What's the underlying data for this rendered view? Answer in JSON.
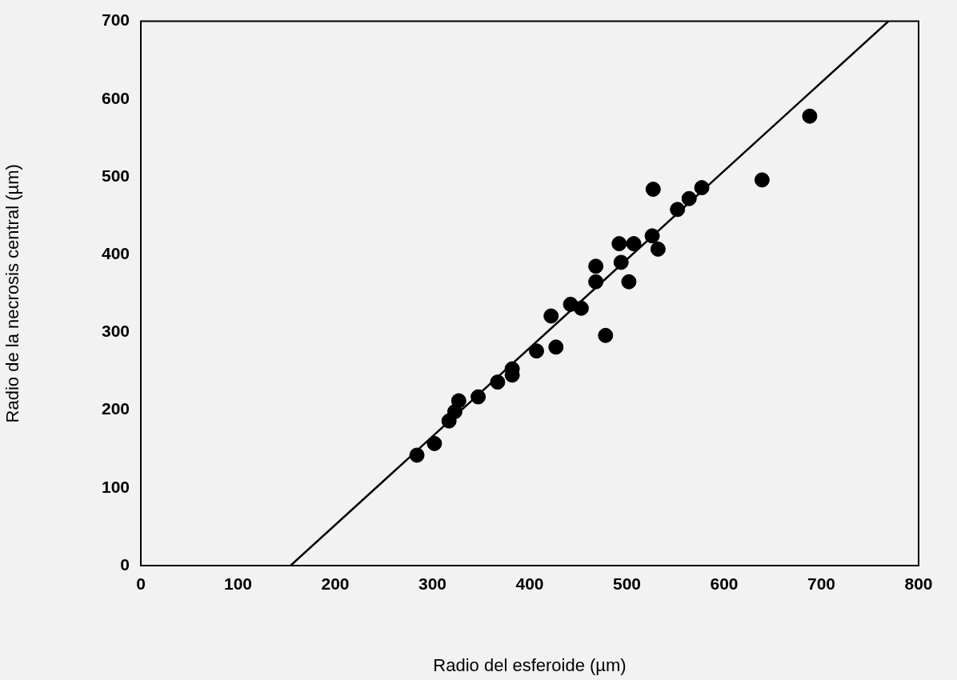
{
  "chart_data": {
    "type": "scatter",
    "xlabel": "Radio del esferoide (µm)",
    "ylabel": "Radio de la necrosis central (µm)",
    "xlim": [
      0,
      800
    ],
    "ylim": [
      0,
      700
    ],
    "xticks": [
      0,
      100,
      200,
      300,
      400,
      500,
      600,
      700,
      800
    ],
    "yticks": [
      0,
      100,
      200,
      300,
      400,
      500,
      600,
      700
    ],
    "grid": false,
    "legend": false,
    "series": [
      {
        "color": "#000000",
        "marker": "circle",
        "x": [
          284,
          302,
          317,
          323,
          327,
          347,
          367,
          382,
          382,
          407,
          427,
          422,
          442,
          453,
          478,
          468,
          468,
          502,
          494,
          492,
          507,
          526,
          532,
          527,
          552,
          564,
          577,
          639,
          688
        ],
        "values": [
          142,
          157,
          186,
          198,
          212,
          217,
          236,
          253,
          245,
          276,
          281,
          321,
          336,
          331,
          296,
          365,
          385,
          365,
          390,
          414,
          414,
          424,
          407,
          484,
          458,
          472,
          486,
          496,
          578
        ]
      },
      {
        "type": "line",
        "color": "#000000",
        "marker": "none",
        "x": [
          154,
          769
        ],
        "values": [
          0,
          700
        ]
      }
    ]
  }
}
